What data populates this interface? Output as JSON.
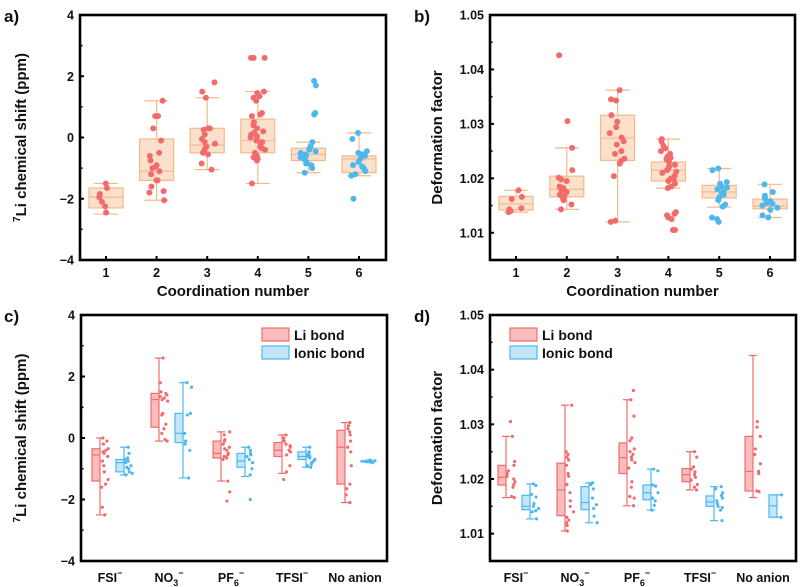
{
  "colors": {
    "li_bond": "#f26b6b",
    "li_bond_fill": "#f8bcbc",
    "ionic_bond": "#4db8ee",
    "ionic_bond_fill": "#c4e6fa",
    "box_stroke": "#f5b98a",
    "box_fill": "#fbe0cc",
    "axis": "#000000"
  },
  "chart_data": [
    {
      "panel": "a)",
      "type": "box",
      "xlabel": "Coordination number",
      "ylabel_sup": "7",
      "ylabel": "Li chemical shift (ppm)",
      "ylim": [
        -4,
        4
      ],
      "yticks": [
        "4",
        "2",
        "0",
        "−2",
        "−4"
      ],
      "ytick_values": [
        4,
        2,
        0,
        -2,
        -4
      ],
      "categories": [
        "1",
        "2",
        "3",
        "4",
        "5",
        "6"
      ],
      "boxes": [
        {
          "min": -2.5,
          "q1": -2.3,
          "median": -1.95,
          "q3": -1.65,
          "max": -1.5,
          "color": "li_bond",
          "points": [
            -1.5,
            -1.65,
            -1.85,
            -2.1,
            -2.25,
            -2.45,
            -1.95
          ]
        },
        {
          "min": -2.05,
          "q1": -1.4,
          "median": -1.1,
          "q3": -0.05,
          "max": 1.2,
          "color": "li_bond",
          "points": [
            1.2,
            0.7,
            0.7,
            0.3,
            -0.1,
            -0.5,
            -0.6,
            -0.9,
            -1.0,
            -1.1,
            -1.2,
            -1.4,
            -1.4,
            -1.6,
            -1.8,
            -1.75,
            -2.05,
            -0.75,
            -0.95
          ]
        },
        {
          "min": -1.05,
          "q1": -0.5,
          "median": -0.25,
          "q3": 0.3,
          "max": 1.3,
          "color": "li_bond",
          "points": [
            1.8,
            1.5,
            1.3,
            0.3,
            0.3,
            0.25,
            -0.05,
            -0.2,
            -0.3,
            -0.5,
            -0.55,
            -0.4,
            -0.85,
            -1.05,
            0.1,
            -0.15
          ]
        },
        {
          "min": -1.5,
          "q1": -0.5,
          "median": -0.1,
          "q3": 0.6,
          "max": 1.5,
          "color": "li_bond",
          "points": [
            2.6,
            2.6,
            2.6,
            1.5,
            1.45,
            1.3,
            1.35,
            1.2,
            0.8,
            0.75,
            0.7,
            0.4,
            0.3,
            0.1,
            0.0,
            -0.1,
            -0.2,
            -0.3,
            -0.4,
            -0.5,
            -0.6,
            -0.7,
            -0.75,
            0.2,
            0.05,
            -0.05,
            0.5,
            -0.65,
            -0.35,
            -1.5,
            0.15,
            -0.15
          ]
        },
        {
          "min": -1.15,
          "q1": -0.75,
          "median": -0.55,
          "q3": -0.35,
          "max": -0.15,
          "color": "ionic_bond",
          "points": [
            1.85,
            1.7,
            0.8,
            0.75,
            -0.15,
            -0.3,
            -0.4,
            -0.5,
            -0.55,
            -0.6,
            -0.7,
            -0.8,
            -0.9,
            -1.0,
            -1.15,
            -0.45,
            -0.65,
            -0.85,
            -0.35
          ]
        },
        {
          "min": -1.25,
          "q1": -1.15,
          "median": -0.7,
          "q3": -0.6,
          "max": 0.15,
          "color": "ionic_bond",
          "points": [
            0.15,
            -0.05,
            -0.45,
            -0.5,
            -0.6,
            -0.7,
            -0.8,
            -0.9,
            -1.0,
            -1.1,
            -1.2,
            -1.25,
            -2.0,
            -0.55,
            -0.95
          ]
        }
      ]
    },
    {
      "panel": "b)",
      "type": "box",
      "xlabel": "Coordination number",
      "ylabel": "Deformation factor",
      "ylim": [
        1.005,
        1.05
      ],
      "yticks": [
        "1.05",
        "1.04",
        "1.03",
        "1.02",
        "1.01"
      ],
      "ytick_values": [
        1.05,
        1.04,
        1.03,
        1.02,
        1.01
      ],
      "categories": [
        "1",
        "2",
        "3",
        "4",
        "5",
        "6"
      ],
      "boxes": [
        {
          "min": 1.0138,
          "q1": 1.0142,
          "median": 1.0153,
          "q3": 1.0167,
          "max": 1.0178,
          "color": "li_bond",
          "points": [
            1.0178,
            1.0166,
            1.0162,
            1.0145,
            1.014,
            1.0138,
            1.0143
          ]
        },
        {
          "min": 1.0143,
          "q1": 1.0166,
          "median": 1.018,
          "q3": 1.0204,
          "max": 1.0256,
          "color": "li_bond",
          "points": [
            1.0426,
            1.0305,
            1.0256,
            1.0215,
            1.0198,
            1.0195,
            1.0185,
            1.0182,
            1.0175,
            1.017,
            1.0168,
            1.0165,
            1.016,
            1.0152,
            1.0143,
            1.0178,
            1.0201
          ]
        },
        {
          "min": 1.012,
          "q1": 1.0233,
          "median": 1.0274,
          "q3": 1.0316,
          "max": 1.0362,
          "color": "li_bond",
          "points": [
            1.0362,
            1.0345,
            1.0343,
            1.0316,
            1.0304,
            1.0294,
            1.0283,
            1.0275,
            1.0262,
            1.025,
            1.0245,
            1.0236,
            1.0232,
            1.0227,
            1.0204,
            1.0122,
            1.012,
            1.0268
          ]
        },
        {
          "min": 1.0182,
          "q1": 1.0195,
          "median": 1.0215,
          "q3": 1.023,
          "max": 1.0272,
          "color": "li_bond",
          "points": [
            1.0272,
            1.0268,
            1.026,
            1.0255,
            1.025,
            1.0245,
            1.024,
            1.0235,
            1.023,
            1.0225,
            1.022,
            1.0215,
            1.021,
            1.0205,
            1.02,
            1.0195,
            1.019,
            1.0185,
            1.0182,
            1.0138,
            1.0135,
            1.0132,
            1.0128,
            1.0125,
            1.0105,
            1.0105,
            1.0222,
            1.0212,
            1.0238,
            1.0198
          ]
        },
        {
          "min": 1.0147,
          "q1": 1.0164,
          "median": 1.0175,
          "q3": 1.0187,
          "max": 1.0218,
          "color": "ionic_bond",
          "points": [
            1.0218,
            1.0215,
            1.0193,
            1.019,
            1.0185,
            1.018,
            1.0175,
            1.017,
            1.0165,
            1.016,
            1.0152,
            1.0148,
            1.0128,
            1.0125,
            1.012,
            1.0183,
            1.0172
          ]
        },
        {
          "min": 1.0128,
          "q1": 1.0144,
          "median": 1.0149,
          "q3": 1.0162,
          "max": 1.0189,
          "color": "ionic_bond",
          "points": [
            1.0189,
            1.0175,
            1.0166,
            1.0162,
            1.0158,
            1.0155,
            1.015,
            1.0146,
            1.0142,
            1.0132,
            1.0128,
            1.0168,
            1.0153
          ]
        }
      ]
    },
    {
      "panel": "c)",
      "type": "box",
      "xlabel": "",
      "ylabel_sup": "7",
      "ylabel": "Li chemical shift (ppm)",
      "ylim": [
        -4,
        4
      ],
      "yticks": [
        "4",
        "2",
        "0",
        "−2",
        "−4"
      ],
      "ytick_values": [
        4,
        2,
        0,
        -2,
        -4
      ],
      "categories": [
        {
          "base": "FSI",
          "sub": "",
          "sup": "−"
        },
        {
          "base": "NO",
          "sub": "3",
          "sup": "−"
        },
        {
          "base": "PF",
          "sub": "6",
          "sup": "−"
        },
        {
          "base": "TFSI",
          "sub": "",
          "sup": "−"
        },
        {
          "base": "No anion",
          "sub": "",
          "sup": ""
        }
      ],
      "legend": [
        {
          "label": "Li bond",
          "color": "li_bond"
        },
        {
          "label": "Ionic bond",
          "color": "ionic_bond"
        }
      ],
      "legend_position": "top-right",
      "series": [
        {
          "name": "Li bond",
          "boxes": [
            {
              "min": -2.5,
              "q1": -1.4,
              "median": -0.55,
              "q3": -0.35,
              "max": 0.0,
              "points": [
                0.0,
                -0.1,
                -0.2,
                -0.35,
                -0.4,
                -0.5,
                -0.6,
                -0.75,
                -0.9,
                -1.1,
                -1.35,
                -1.5,
                -1.6,
                -2.25,
                -2.5,
                -0.45
              ]
            },
            {
              "min": -0.1,
              "q1": 0.35,
              "median": 1.25,
              "q3": 1.45,
              "max": 2.6,
              "points": [
                2.6,
                1.8,
                1.5,
                1.45,
                1.4,
                1.35,
                1.3,
                1.25,
                0.8,
                0.75,
                0.45,
                0.3,
                0.15,
                -0.05,
                -0.1,
                1.2
              ]
            },
            {
              "min": -1.4,
              "q1": -0.65,
              "median": -0.5,
              "q3": -0.1,
              "max": 0.2,
              "points": [
                0.2,
                0.1,
                -0.05,
                -0.1,
                -0.2,
                -0.3,
                -0.4,
                -0.5,
                -0.55,
                -0.6,
                -0.65,
                -0.7,
                -1.4,
                -1.75,
                -2.05,
                -0.35
              ]
            },
            {
              "min": -1.15,
              "q1": -0.6,
              "median": -0.4,
              "q3": -0.15,
              "max": 0.1,
              "points": [
                0.1,
                0.0,
                -0.1,
                -0.2,
                -0.3,
                -0.4,
                -0.45,
                -0.55,
                -0.9,
                -1.1,
                -1.35,
                -0.25
              ]
            },
            {
              "min": -2.1,
              "q1": -1.5,
              "median": -0.3,
              "q3": 0.25,
              "max": 0.5,
              "points": [
                0.5,
                0.4,
                0.3,
                0.1,
                -0.1,
                -0.3,
                -0.45,
                -0.9,
                -1.5,
                -1.65,
                -1.85,
                -2.1,
                0.2
              ]
            }
          ]
        },
        {
          "name": "Ionic bond",
          "boxes": [
            {
              "min": -1.2,
              "q1": -1.1,
              "median": -0.8,
              "q3": -0.7,
              "max": -0.3,
              "points": [
                -0.3,
                -0.5,
                -0.65,
                -0.7,
                -0.8,
                -0.9,
                -1.0,
                -1.1,
                -1.15,
                -1.2,
                -0.75,
                -0.95
              ]
            },
            {
              "min": -1.3,
              "q1": -0.15,
              "median": 0.15,
              "q3": 0.8,
              "max": 1.8,
              "points": [
                1.8,
                1.65,
                0.8,
                0.75,
                0.15,
                -0.1,
                -0.2,
                -0.4,
                -1.3
              ]
            },
            {
              "min": -1.25,
              "q1": -0.95,
              "median": -0.75,
              "q3": -0.5,
              "max": -0.3,
              "points": [
                -0.3,
                -0.4,
                -0.5,
                -0.6,
                -0.7,
                -0.8,
                -1.0,
                -1.2,
                -2.0,
                -0.55
              ]
            },
            {
              "min": -0.95,
              "q1": -0.7,
              "median": -0.6,
              "q3": -0.45,
              "max": -0.3,
              "points": [
                -0.3,
                -0.45,
                -0.5,
                -0.55,
                -0.6,
                -0.65,
                -0.7,
                -0.75,
                -0.8,
                -0.85,
                -0.9,
                -0.95,
                -0.6
              ]
            },
            {
              "min": -0.8,
              "q1": -0.78,
              "median": -0.76,
              "q3": -0.74,
              "max": -0.72,
              "points": [
                -0.72,
                -0.74,
                -0.76,
                -0.78,
                -0.8
              ]
            }
          ]
        }
      ]
    },
    {
      "panel": "d)",
      "type": "box",
      "xlabel": "",
      "ylabel": "Deformation factor",
      "ylim": [
        1.005,
        1.05
      ],
      "yticks": [
        "1.05",
        "1.04",
        "1.03",
        "1.02",
        "1.01"
      ],
      "ytick_values": [
        1.05,
        1.04,
        1.03,
        1.02,
        1.01
      ],
      "categories": [
        {
          "base": "FSI",
          "sub": "",
          "sup": "−"
        },
        {
          "base": "NO",
          "sub": "3",
          "sup": "−"
        },
        {
          "base": "PF",
          "sub": "6",
          "sup": "−"
        },
        {
          "base": "TFSI",
          "sub": "",
          "sup": "−"
        },
        {
          "base": "No anion",
          "sub": "",
          "sup": ""
        }
      ],
      "legend": [
        {
          "label": "Li bond",
          "color": "li_bond"
        },
        {
          "label": "Ionic bond",
          "color": "ionic_bond"
        }
      ],
      "legend_position": "top-left",
      "series": [
        {
          "name": "Li bond",
          "boxes": [
            {
              "min": 1.0166,
              "q1": 1.0189,
              "median": 1.0203,
              "q3": 1.0225,
              "max": 1.0278,
              "points": [
                1.0305,
                1.0278,
                1.0232,
                1.0225,
                1.0215,
                1.0205,
                1.02,
                1.0195,
                1.019,
                1.0185,
                1.0168,
                1.0166,
                1.021
              ]
            },
            {
              "min": 1.0105,
              "q1": 1.0133,
              "median": 1.018,
              "q3": 1.0229,
              "max": 1.0335,
              "points": [
                1.0335,
                1.025,
                1.0245,
                1.024,
                1.0235,
                1.0225,
                1.021,
                1.0175,
                1.016,
                1.015,
                1.014,
                1.013,
                1.0125,
                1.012,
                1.0115,
                1.0105,
                1.0205,
                1.019
              ]
            },
            {
              "min": 1.0151,
              "q1": 1.021,
              "median": 1.0239,
              "q3": 1.0266,
              "max": 1.0345,
              "points": [
                1.0362,
                1.0345,
                1.0315,
                1.0275,
                1.027,
                1.0255,
                1.025,
                1.0245,
                1.024,
                1.0235,
                1.023,
                1.022,
                1.0195,
                1.0185,
                1.0168,
                1.0165,
                1.0151
              ]
            },
            {
              "min": 1.018,
              "q1": 1.0195,
              "median": 1.0208,
              "q3": 1.0219,
              "max": 1.025,
              "points": [
                1.025,
                1.024,
                1.0222,
                1.0218,
                1.0213,
                1.0208,
                1.0203,
                1.0198,
                1.019,
                1.0185,
                1.018
              ]
            },
            {
              "min": 1.0166,
              "q1": 1.0178,
              "median": 1.0214,
              "q3": 1.0278,
              "max": 1.0426,
              "points": [
                1.0305,
                1.0295,
                1.0278,
                1.0255,
                1.0228,
                1.0214,
                1.021,
                1.0178,
                1.0177,
                1.0245
              ]
            }
          ]
        },
        {
          "name": "Ionic bond",
          "boxes": [
            {
              "min": 1.0127,
              "q1": 1.0144,
              "median": 1.015,
              "q3": 1.017,
              "max": 1.0191,
              "points": [
                1.0191,
                1.0188,
                1.0172,
                1.0167,
                1.0155,
                1.015,
                1.0146,
                1.0142,
                1.014,
                1.0127
              ]
            },
            {
              "min": 1.012,
              "q1": 1.0144,
              "median": 1.0157,
              "q3": 1.0186,
              "max": 1.0193,
              "points": [
                1.0193,
                1.019,
                1.0182,
                1.0165,
                1.0153,
                1.0146,
                1.0132,
                1.012
              ]
            },
            {
              "min": 1.0143,
              "q1": 1.0162,
              "median": 1.0175,
              "q3": 1.0189,
              "max": 1.0218,
              "points": [
                1.0218,
                1.0215,
                1.0189,
                1.0187,
                1.0175,
                1.0165,
                1.016,
                1.0152,
                1.0143
              ]
            },
            {
              "min": 1.0124,
              "q1": 1.015,
              "median": 1.0158,
              "q3": 1.0169,
              "max": 1.0186,
              "points": [
                1.0186,
                1.0182,
                1.0175,
                1.017,
                1.0165,
                1.016,
                1.0155,
                1.015,
                1.0148,
                1.0143,
                1.0124
              ]
            },
            {
              "min": 1.013,
              "q1": 1.013,
              "median": 1.0151,
              "q3": 1.0171,
              "max": 1.0171,
              "points": [
                1.0171,
                1.013
              ]
            }
          ]
        }
      ]
    }
  ]
}
